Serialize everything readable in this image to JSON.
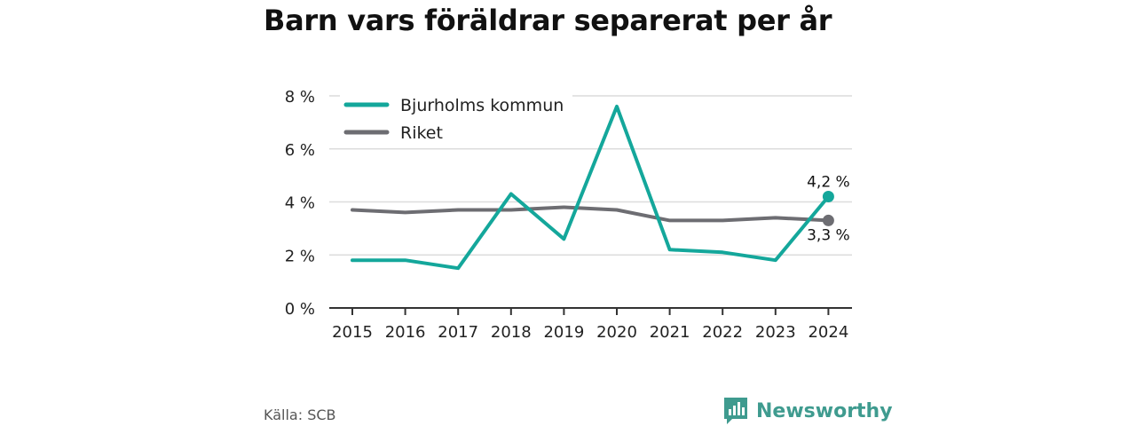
{
  "title": "Barn vars föräldrar separerat per år",
  "source": "Källa: SCB",
  "brand": {
    "name": "Newsworthy",
    "color": "#3f9b8f"
  },
  "chart_data": {
    "type": "line",
    "x": [
      "2015",
      "2016",
      "2017",
      "2018",
      "2019",
      "2020",
      "2021",
      "2022",
      "2023",
      "2024"
    ],
    "yticks": [
      "0 %",
      "2 %",
      "4 %",
      "6 %",
      "8 %"
    ],
    "ylim": [
      0,
      8
    ],
    "grid": true,
    "legend_position": "top-left",
    "series": [
      {
        "name": "Bjurholms kommun",
        "color": "#14a79b",
        "values": [
          1.8,
          1.8,
          1.5,
          4.3,
          2.6,
          7.6,
          2.2,
          2.1,
          1.8,
          4.2
        ],
        "end_label": "4,2 %"
      },
      {
        "name": "Riket",
        "color": "#6d6d72",
        "values": [
          3.7,
          3.6,
          3.7,
          3.7,
          3.8,
          3.7,
          3.3,
          3.3,
          3.4,
          3.3
        ],
        "end_label": "3,3 %"
      }
    ]
  }
}
